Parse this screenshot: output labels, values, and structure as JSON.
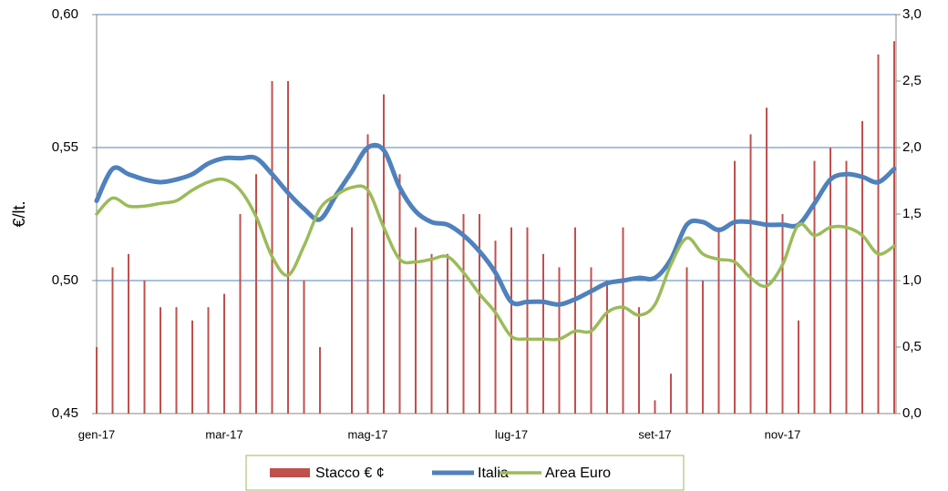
{
  "chart_data": {
    "type": "bar",
    "y_label": "€/lt.",
    "categories": [
      "gen-17",
      null,
      null,
      null,
      null,
      null,
      null,
      null,
      "mar-17",
      null,
      null,
      null,
      null,
      null,
      null,
      null,
      null,
      "mag-17",
      null,
      null,
      null,
      null,
      null,
      null,
      null,
      null,
      "lug-17",
      null,
      null,
      null,
      null,
      null,
      null,
      null,
      null,
      "set-17",
      null,
      null,
      null,
      null,
      null,
      null,
      null,
      "nov-17",
      null,
      null,
      null,
      null,
      null,
      null,
      null
    ],
    "series": [
      {
        "name": "Stacco € ¢",
        "type": "bar",
        "axis": "y2",
        "color": "#c0504d",
        "values": [
          0.5,
          1.1,
          1.2,
          1.0,
          0.8,
          0.8,
          0.7,
          0.8,
          0.9,
          1.5,
          1.8,
          2.5,
          2.5,
          1.0,
          0.5,
          0,
          1.4,
          2.1,
          2.4,
          1.8,
          1.4,
          1.2,
          1.2,
          1.5,
          1.5,
          1.3,
          1.4,
          1.4,
          1.2,
          1.1,
          1.4,
          1.1,
          1.0,
          1.4,
          0.8,
          0.1,
          0.3,
          1.1,
          1.0,
          1.4,
          1.9,
          2.1,
          2.3,
          1.5,
          0.7,
          1.9,
          2.0,
          1.9,
          2.2,
          2.7,
          2.8
        ]
      },
      {
        "name": "Italia",
        "type": "line",
        "color": "#4f81bd",
        "values": [
          0.53,
          0.542,
          0.54,
          0.538,
          0.537,
          0.538,
          0.54,
          0.544,
          0.546,
          0.546,
          0.546,
          0.54,
          0.533,
          0.527,
          0.523,
          0.532,
          0.541,
          0.55,
          0.549,
          0.535,
          0.526,
          0.522,
          0.521,
          0.517,
          0.511,
          0.503,
          0.492,
          0.492,
          0.492,
          0.491,
          0.493,
          0.496,
          0.499,
          0.5,
          0.501,
          0.501,
          0.508,
          0.521,
          0.522,
          0.519,
          0.522,
          0.522,
          0.521,
          0.521,
          0.521,
          0.529,
          0.538,
          0.54,
          0.539,
          0.537,
          0.542
        ]
      },
      {
        "name": "Area Euro",
        "type": "line",
        "color": "#9bbb59",
        "values": [
          0.525,
          0.531,
          0.528,
          0.528,
          0.529,
          0.53,
          0.534,
          0.537,
          0.538,
          0.534,
          0.524,
          0.509,
          0.502,
          0.513,
          0.527,
          0.532,
          0.535,
          0.534,
          0.52,
          0.508,
          0.507,
          0.508,
          0.509,
          0.503,
          0.495,
          0.488,
          0.479,
          0.478,
          0.478,
          0.478,
          0.481,
          0.481,
          0.488,
          0.49,
          0.487,
          0.491,
          0.506,
          0.516,
          0.51,
          0.508,
          0.507,
          0.501,
          0.498,
          0.506,
          0.521,
          0.517,
          0.52,
          0.52,
          0.517,
          0.51,
          0.513
        ]
      }
    ],
    "ylim": [
      0.45,
      0.6
    ],
    "yticks": [
      {
        "value": 0.45,
        "label": "0,45"
      },
      {
        "value": 0.5,
        "label": "0,50"
      },
      {
        "value": 0.55,
        "label": "0,55"
      },
      {
        "value": 0.6,
        "label": "0,60"
      }
    ],
    "y2lim": [
      0,
      3.0
    ],
    "y2ticks": [
      {
        "value": 0,
        "label": "0,0"
      },
      {
        "value": 0.5,
        "label": "0,5"
      },
      {
        "value": 1.0,
        "label": "1,0"
      },
      {
        "value": 1.5,
        "label": "1,5"
      },
      {
        "value": 2.0,
        "label": "2,0"
      },
      {
        "value": 2.5,
        "label": "2,5"
      },
      {
        "value": 3.0,
        "label": "3,0"
      }
    ],
    "grid": true,
    "legend": "bottom"
  }
}
